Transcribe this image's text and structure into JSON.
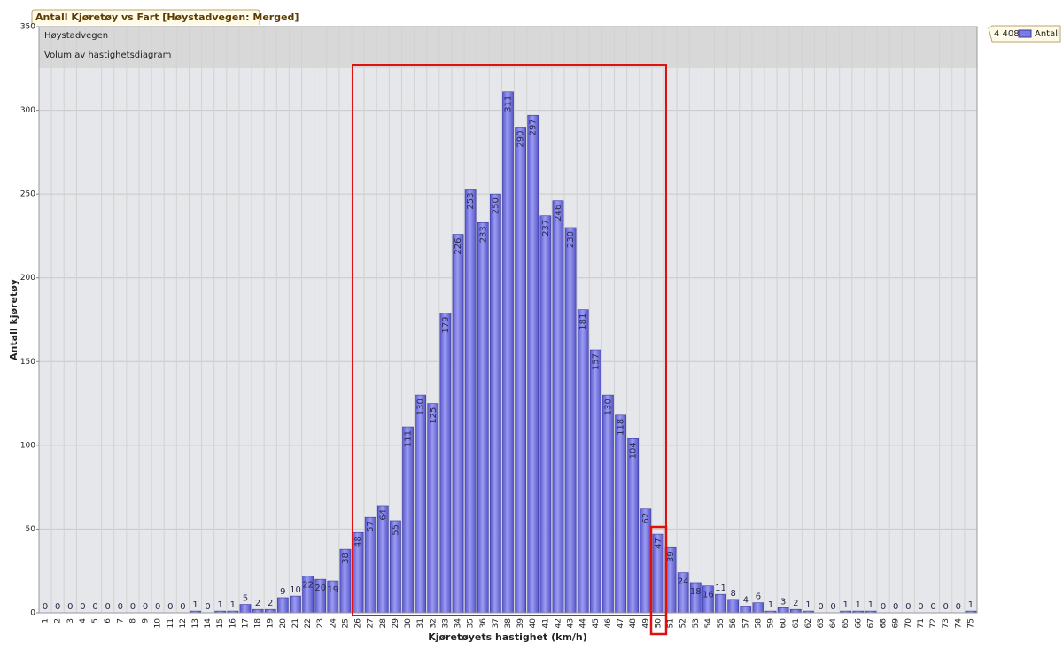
{
  "chart_data": {
    "type": "bar",
    "title": "Antall Kjøretøy vs Fart [Høystadvegen: Merged]",
    "annotations": [
      "Høystadvegen",
      "Volum av hastighetsdiagram"
    ],
    "x_label": "Kjøretøyets hastighet (km/h)",
    "y_label": "Antall kjøretøy",
    "legend_total": "4 408",
    "categories": [
      "1",
      "2",
      "3",
      "4",
      "5",
      "6",
      "7",
      "8",
      "9",
      "10",
      "11",
      "12",
      "13",
      "14",
      "15",
      "16",
      "17",
      "18",
      "19",
      "20",
      "21",
      "22",
      "23",
      "24",
      "25",
      "26",
      "27",
      "28",
      "29",
      "30",
      "31",
      "32",
      "33",
      "34",
      "35",
      "36",
      "37",
      "38",
      "39",
      "40",
      "41",
      "42",
      "43",
      "44",
      "45",
      "46",
      "47",
      "48",
      "49",
      "50",
      "51",
      "52",
      "53",
      "54",
      "55",
      "56",
      "57",
      "58",
      "59",
      "60",
      "61",
      "62",
      "63",
      "64",
      "65",
      "66",
      "67",
      "68",
      "69",
      "70",
      "71",
      "72",
      "73",
      "74",
      "75"
    ],
    "series": [
      {
        "name": "Antall",
        "color": "#7b7be6",
        "values": [
          0,
          0,
          0,
          0,
          0,
          0,
          0,
          0,
          0,
          0,
          0,
          0,
          1,
          0,
          1,
          1,
          5,
          2,
          2,
          9,
          10,
          22,
          20,
          19,
          38,
          48,
          57,
          64,
          55,
          111,
          130,
          125,
          179,
          226,
          253,
          233,
          250,
          311,
          290,
          297,
          237,
          246,
          230,
          181,
          157,
          130,
          118,
          104,
          62,
          47,
          39,
          24,
          18,
          16,
          11,
          8,
          4,
          6,
          1,
          3,
          2,
          1,
          0,
          0,
          1,
          1,
          1,
          0,
          0,
          0,
          0,
          0,
          0,
          0,
          1
        ]
      }
    ],
    "ylim": [
      0,
      350
    ],
    "yticks": [
      0,
      50,
      100,
      150,
      200,
      250,
      300,
      350
    ],
    "grid": true
  }
}
